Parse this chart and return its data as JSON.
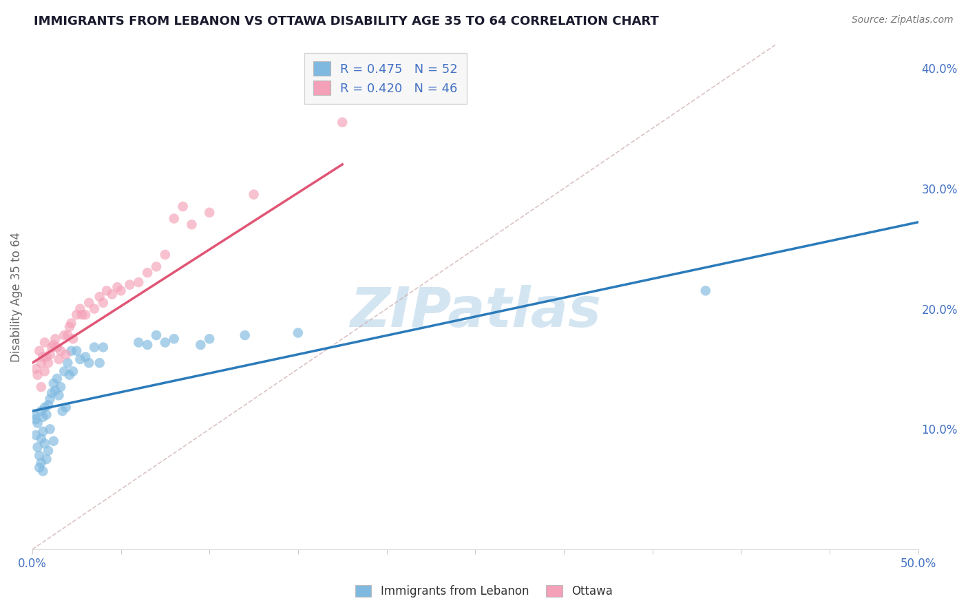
{
  "title": "IMMIGRANTS FROM LEBANON VS OTTAWA DISABILITY AGE 35 TO 64 CORRELATION CHART",
  "source": "Source: ZipAtlas.com",
  "ylabel": "Disability Age 35 to 64",
  "xmin": 0.0,
  "xmax": 0.5,
  "ymin": 0.0,
  "ymax": 0.42,
  "xtick_positions": [
    0.0,
    0.05,
    0.1,
    0.15,
    0.2,
    0.25,
    0.3,
    0.35,
    0.4,
    0.45,
    0.5
  ],
  "xtick_labels_show": {
    "0.0": "0.0%",
    "0.5": "50.0%"
  },
  "yticks_right": [
    0.1,
    0.2,
    0.3,
    0.4
  ],
  "blue_R": 0.475,
  "blue_N": 52,
  "pink_R": 0.42,
  "pink_N": 46,
  "blue_color": "#7fb9e0",
  "pink_color": "#f4a0b8",
  "blue_line_color": "#2b7bba",
  "pink_line_color": "#e05575",
  "blue_label": "Immigrants from Lebanon",
  "pink_label": "Ottawa",
  "blue_scatter_x": [
    0.001,
    0.002,
    0.002,
    0.003,
    0.003,
    0.004,
    0.004,
    0.005,
    0.005,
    0.005,
    0.006,
    0.006,
    0.006,
    0.007,
    0.007,
    0.008,
    0.008,
    0.009,
    0.009,
    0.01,
    0.01,
    0.011,
    0.012,
    0.012,
    0.013,
    0.014,
    0.015,
    0.016,
    0.017,
    0.018,
    0.019,
    0.02,
    0.021,
    0.022,
    0.023,
    0.025,
    0.027,
    0.03,
    0.032,
    0.035,
    0.038,
    0.04,
    0.06,
    0.065,
    0.07,
    0.075,
    0.08,
    0.095,
    0.1,
    0.12,
    0.15,
    0.38
  ],
  "blue_scatter_y": [
    0.112,
    0.108,
    0.095,
    0.085,
    0.105,
    0.078,
    0.068,
    0.115,
    0.092,
    0.072,
    0.11,
    0.098,
    0.065,
    0.118,
    0.088,
    0.112,
    0.075,
    0.12,
    0.082,
    0.125,
    0.1,
    0.13,
    0.138,
    0.09,
    0.132,
    0.142,
    0.128,
    0.135,
    0.115,
    0.148,
    0.118,
    0.155,
    0.145,
    0.165,
    0.148,
    0.165,
    0.158,
    0.16,
    0.155,
    0.168,
    0.155,
    0.168,
    0.172,
    0.17,
    0.178,
    0.172,
    0.175,
    0.17,
    0.175,
    0.178,
    0.18,
    0.215
  ],
  "pink_scatter_x": [
    0.002,
    0.003,
    0.004,
    0.005,
    0.005,
    0.006,
    0.007,
    0.007,
    0.008,
    0.009,
    0.01,
    0.011,
    0.012,
    0.013,
    0.014,
    0.015,
    0.016,
    0.018,
    0.019,
    0.02,
    0.021,
    0.022,
    0.023,
    0.025,
    0.027,
    0.028,
    0.03,
    0.032,
    0.035,
    0.038,
    0.04,
    0.042,
    0.045,
    0.048,
    0.05,
    0.055,
    0.06,
    0.065,
    0.07,
    0.075,
    0.08,
    0.085,
    0.09,
    0.1,
    0.125,
    0.175
  ],
  "pink_scatter_y": [
    0.15,
    0.145,
    0.165,
    0.155,
    0.135,
    0.16,
    0.148,
    0.172,
    0.16,
    0.155,
    0.162,
    0.168,
    0.17,
    0.175,
    0.168,
    0.158,
    0.165,
    0.178,
    0.162,
    0.178,
    0.185,
    0.188,
    0.175,
    0.195,
    0.2,
    0.195,
    0.195,
    0.205,
    0.2,
    0.21,
    0.205,
    0.215,
    0.212,
    0.218,
    0.215,
    0.22,
    0.222,
    0.23,
    0.235,
    0.245,
    0.275,
    0.285,
    0.27,
    0.28,
    0.295,
    0.355
  ],
  "blue_trendline_x": [
    0.0,
    0.5
  ],
  "blue_trendline_y": [
    0.115,
    0.272
  ],
  "pink_trendline_x": [
    0.0,
    0.175
  ],
  "pink_trendline_y": [
    0.155,
    0.32
  ],
  "diag_line_x": [
    0.0,
    0.42
  ],
  "diag_line_y": [
    0.0,
    0.42
  ],
  "watermark": "ZIPatlas",
  "watermark_color": "#b8d4ea",
  "background_color": "#ffffff",
  "grid_color": "#dddddd",
  "title_color": "#1a1a2e",
  "axis_label_color": "#4472c4",
  "legend_box_color": "#f5f5f5"
}
